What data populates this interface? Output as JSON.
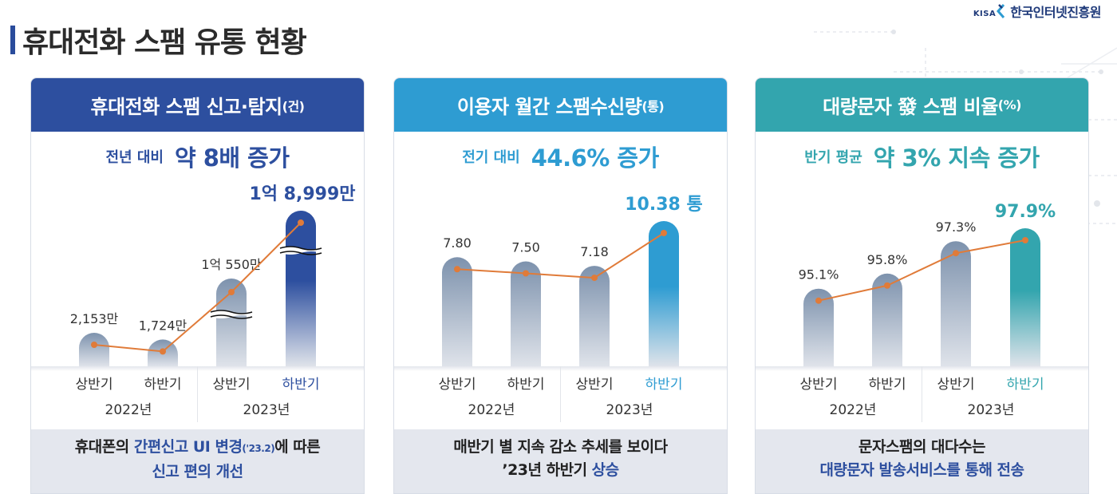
{
  "page": {
    "title": "휴대전화 스팸 유통 현황",
    "logo_mark": "KISA",
    "logo_text": "한국인터넷진흥원"
  },
  "colors": {
    "card1": "#2d4f9f",
    "card2": "#2e9cd2",
    "card3": "#33a5ae",
    "bar_gray_top": "#7d92ad",
    "bar_gray_bottom": "#dfe3ea",
    "line": "#e07b39"
  },
  "axis": {
    "halves": [
      "상반기",
      "하반기",
      "상반기",
      "하반기"
    ],
    "years": [
      "2022년",
      "2023년"
    ]
  },
  "cards": [
    {
      "header": "휴대전화 스팸 신고·탐지",
      "unit": "(건)",
      "headline_small": "전년 대비",
      "headline_big": "약 8배 증가",
      "footer_parts": [
        {
          "text": "휴대폰의 ",
          "style": "normal"
        },
        {
          "text": "간편신고 UI 변경",
          "style": "accent"
        },
        {
          "text": "('23.2)",
          "style": "accent-small"
        },
        {
          "text": "에 따른",
          "style": "normal"
        }
      ],
      "footer_line2": [
        {
          "text": "신고 편의 개선",
          "style": "accent"
        }
      ]
    },
    {
      "header": "이용자 월간 스팸수신량",
      "unit": "(통)",
      "headline_small": "전기 대비",
      "headline_big": "44.6% 증가",
      "footer_parts": [
        {
          "text": "매반기 별 지속 감소 추세를 보이다",
          "style": "normal"
        }
      ],
      "footer_line2": [
        {
          "text": "’23년 하반기 ",
          "style": "normal"
        },
        {
          "text": "상승",
          "style": "accent"
        }
      ]
    },
    {
      "header": "대량문자 發 스팸 비율",
      "unit": "(%)",
      "headline_small": "반기 평균",
      "headline_big": "약 3% 지속 증가",
      "footer_parts": [
        {
          "text": "문자스팸의 대다수는",
          "style": "normal"
        }
      ],
      "footer_line2": [
        {
          "text": "대량문자 발송서비스를 통해 전송",
          "style": "accent"
        }
      ]
    }
  ],
  "chart_data": [
    {
      "type": "bar",
      "title": "휴대전화 스팸 신고·탐지(건)",
      "categories": [
        "2022년 상반기",
        "2022년 하반기",
        "2023년 상반기",
        "2023년 하반기"
      ],
      "values": [
        21530000,
        17240000,
        105500000,
        189990000
      ],
      "labels": [
        "2,153만",
        "1,724만",
        "1억 550만",
        "1억 8,999만"
      ],
      "axis_break": [
        false,
        false,
        true,
        true
      ],
      "overlay_line": true,
      "highlight_last": true,
      "xlabel": "",
      "ylabel": ""
    },
    {
      "type": "bar",
      "title": "이용자 월간 스팸수신량(통)",
      "categories": [
        "2022년 상반기",
        "2022년 하반기",
        "2023년 상반기",
        "2023년 하반기"
      ],
      "values": [
        7.8,
        7.5,
        7.18,
        10.38
      ],
      "labels": [
        "7.80",
        "7.50",
        "7.18",
        "10.38 통"
      ],
      "overlay_line": true,
      "highlight_last": true,
      "xlabel": "",
      "ylabel": ""
    },
    {
      "type": "bar",
      "title": "대량문자 發 스팸 비율(%)",
      "categories": [
        "2022년 상반기",
        "2022년 하반기",
        "2023년 상반기",
        "2023년 하반기"
      ],
      "values": [
        95.1,
        95.8,
        97.3,
        97.9
      ],
      "labels": [
        "95.1%",
        "95.8%",
        "97.3%",
        "97.9%"
      ],
      "overlay_line": true,
      "highlight_last": true,
      "xlabel": "",
      "ylabel": ""
    }
  ]
}
